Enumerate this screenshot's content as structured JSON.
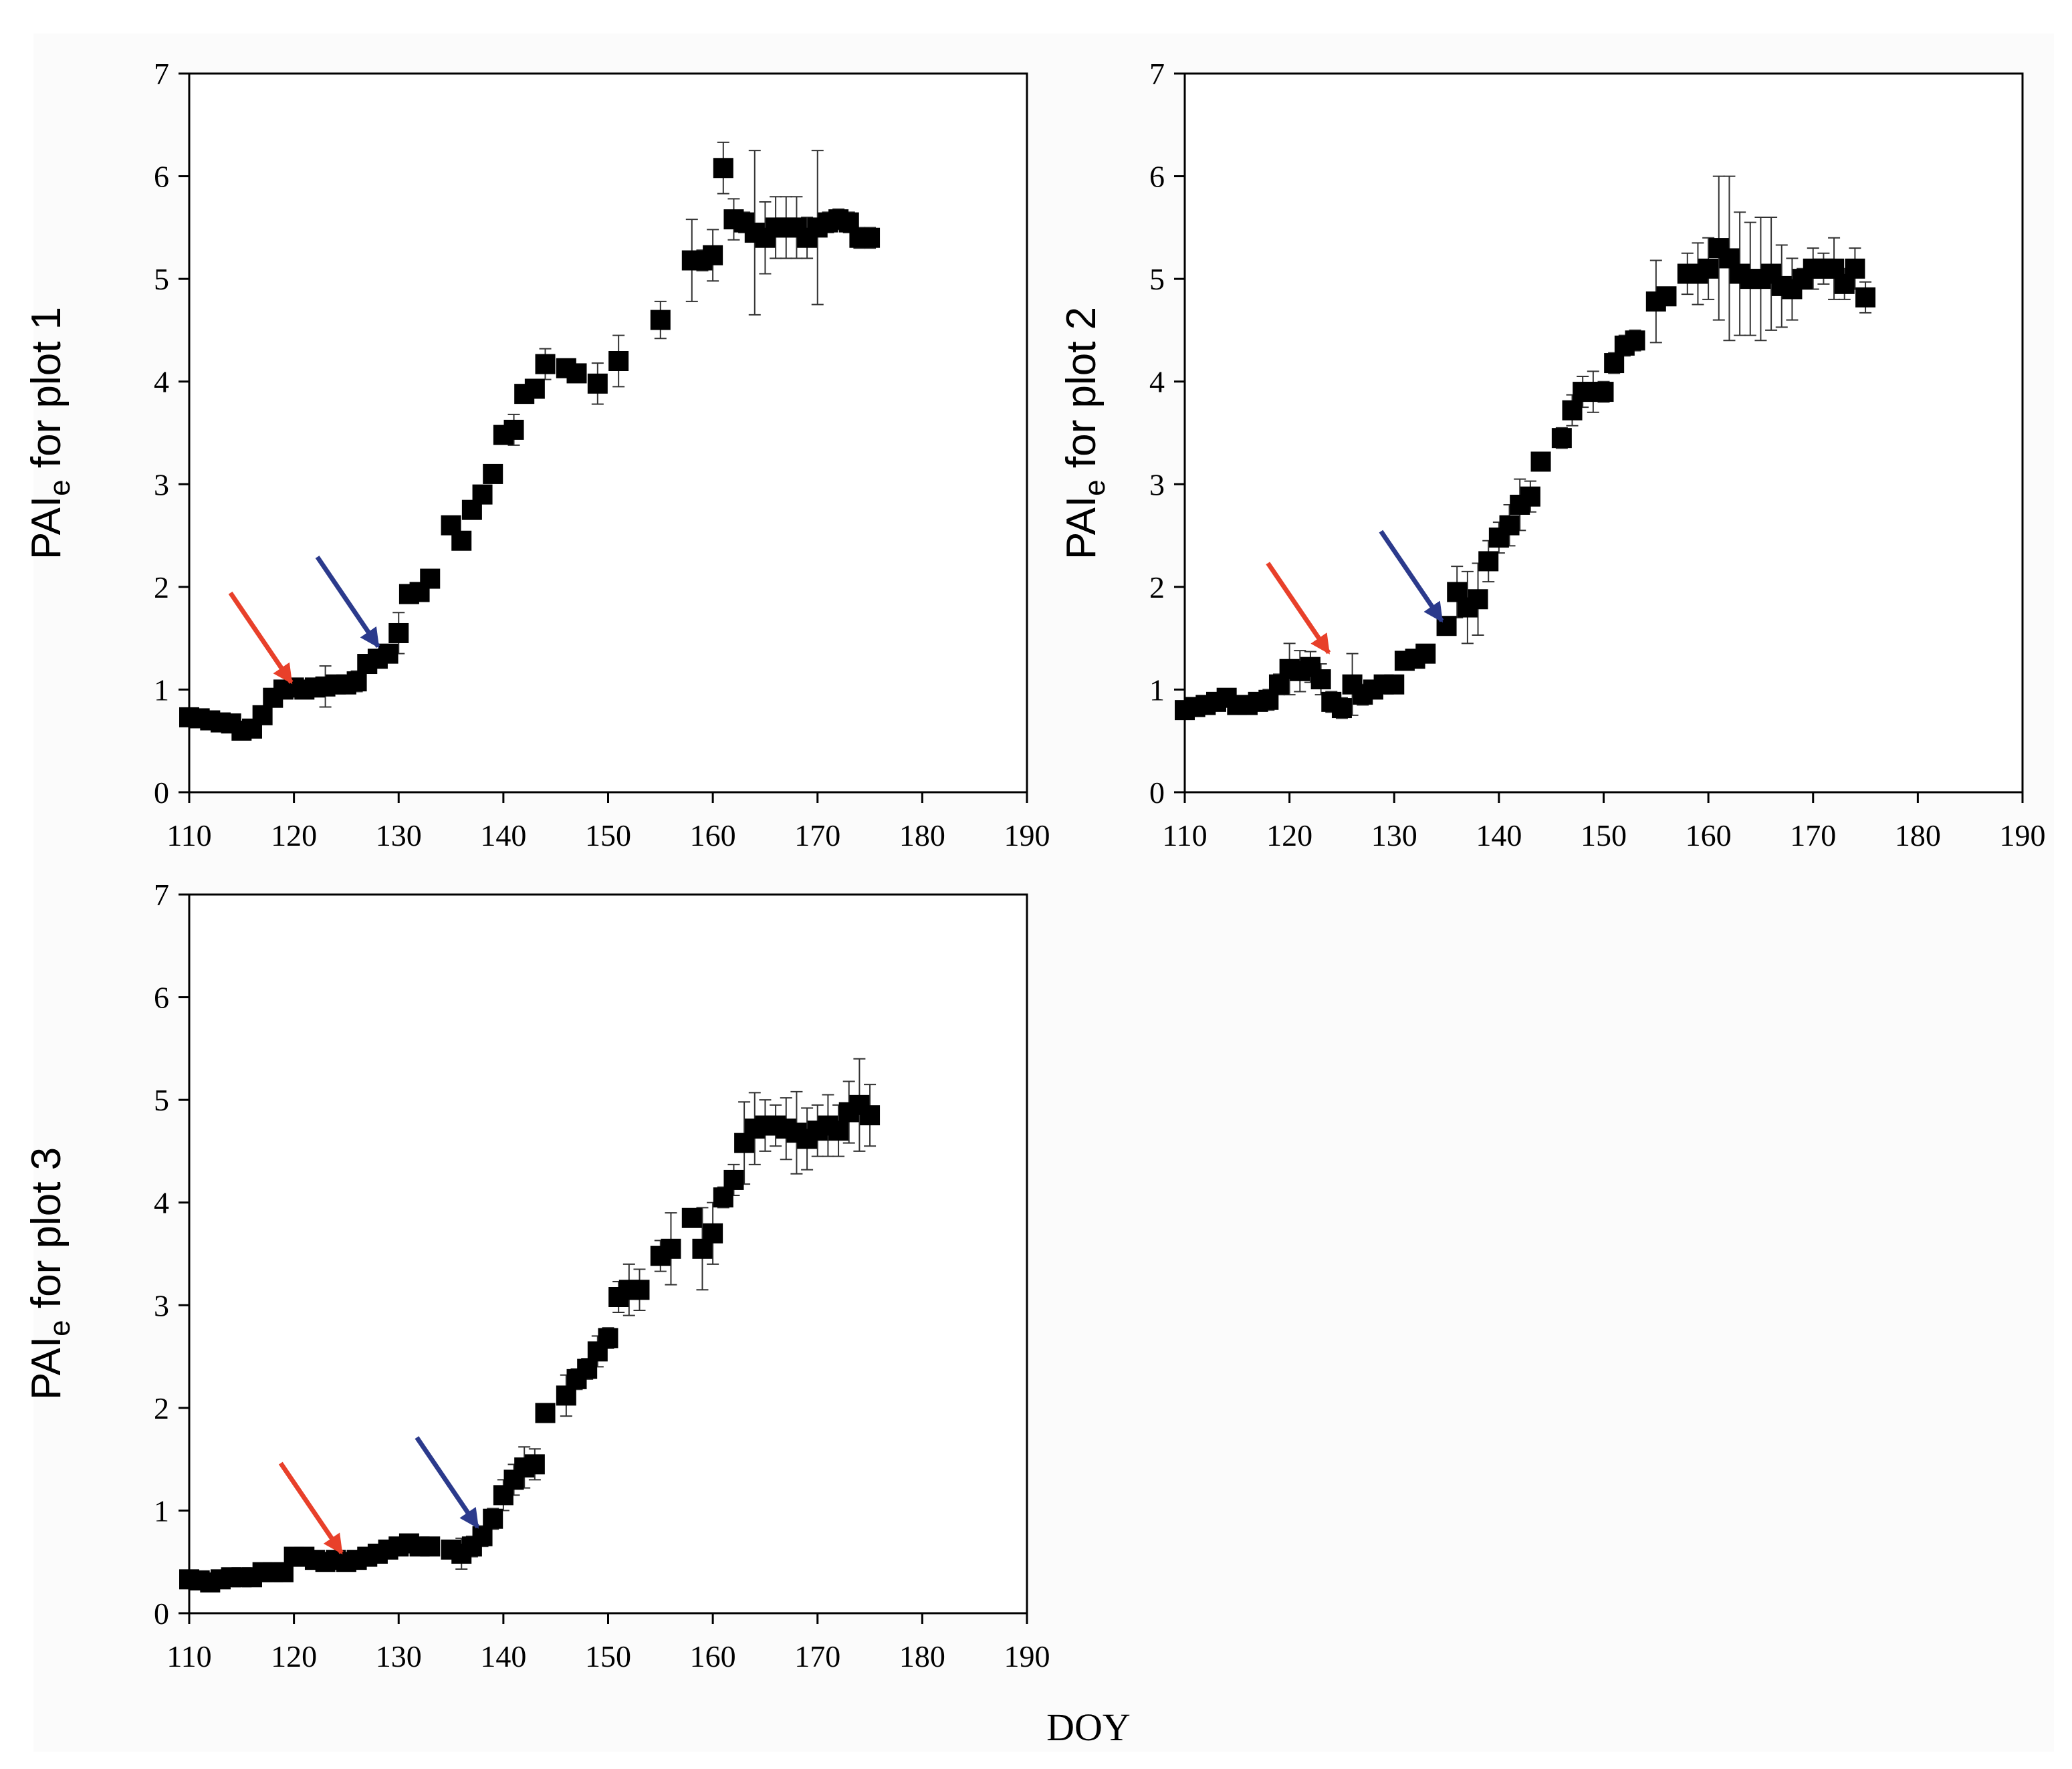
{
  "figure": {
    "xlabel": "DOY"
  },
  "colors": {
    "red_arrow": "#e8402a",
    "blue_arrow": "#2b3a8c",
    "marker": "#000000"
  },
  "chart_data": [
    {
      "type": "scatter",
      "name": "plot1",
      "ylabel": {
        "main": "PAI",
        "sub": "e",
        "rest": " for plot 1"
      },
      "xlim": [
        110,
        190
      ],
      "ylim": [
        0,
        7
      ],
      "xticks": [
        "110",
        "120",
        "130",
        "140",
        "150",
        "160",
        "170",
        "180",
        "190"
      ],
      "yticks": [
        "0",
        "1",
        "2",
        "3",
        "4",
        "5",
        "6",
        "7"
      ],
      "x": [
        110,
        111,
        112,
        113,
        114,
        115,
        116,
        117,
        118,
        119,
        120,
        121,
        122,
        123,
        124,
        125,
        126,
        127,
        128,
        129,
        130,
        131,
        132,
        133,
        135,
        136,
        137,
        138,
        139,
        140,
        141,
        142,
        143,
        144,
        146,
        147,
        149,
        151,
        155,
        158,
        159,
        160,
        161,
        162,
        163,
        164,
        165,
        166,
        167,
        168,
        169,
        170,
        171,
        172,
        173,
        174,
        175
      ],
      "y": [
        0.73,
        0.72,
        0.7,
        0.68,
        0.67,
        0.6,
        0.62,
        0.75,
        0.92,
        1.0,
        1.02,
        1.0,
        1.02,
        1.03,
        1.05,
        1.05,
        1.08,
        1.25,
        1.3,
        1.35,
        1.55,
        1.93,
        1.95,
        2.08,
        2.6,
        2.45,
        2.75,
        2.9,
        3.1,
        3.48,
        3.53,
        3.88,
        3.93,
        4.17,
        4.13,
        4.08,
        3.98,
        4.2,
        4.6,
        5.18,
        5.18,
        5.23,
        6.08,
        5.58,
        5.55,
        5.45,
        5.4,
        5.5,
        5.5,
        5.5,
        5.4,
        5.5,
        5.55,
        5.58,
        5.55,
        5.4,
        5.4
      ],
      "err": [
        0.03,
        0.03,
        0.03,
        0.03,
        0.03,
        0.03,
        0.05,
        0.05,
        0.08,
        0.05,
        0.05,
        0.05,
        0.08,
        0.2,
        0.05,
        0.05,
        0.1,
        0.05,
        0.05,
        0.05,
        0.2,
        0.05,
        0.05,
        0.05,
        0.05,
        0.08,
        0.05,
        0.05,
        0.05,
        0.05,
        0.15,
        0.05,
        0.05,
        0.15,
        0.05,
        0.08,
        0.2,
        0.25,
        0.18,
        0.4,
        0.1,
        0.25,
        0.25,
        0.2,
        0.1,
        0.8,
        0.35,
        0.3,
        0.3,
        0.3,
        0.2,
        0.75,
        0.1,
        0.1,
        0.1,
        0.1,
        0.1
      ],
      "arrows": [
        {
          "color": "red",
          "x": 120.0,
          "y": 1.03
        },
        {
          "color": "blue",
          "x": 128.3,
          "y": 1.38
        }
      ]
    },
    {
      "type": "scatter",
      "name": "plot2",
      "ylabel": {
        "main": "PAI",
        "sub": "e",
        "rest": " for plot 2"
      },
      "xlim": [
        110,
        190
      ],
      "ylim": [
        0,
        7
      ],
      "xticks": [
        "110",
        "120",
        "130",
        "140",
        "150",
        "160",
        "170",
        "180",
        "190"
      ],
      "yticks": [
        "0",
        "1",
        "2",
        "3",
        "4",
        "5",
        "6",
        "7"
      ],
      "x": [
        110,
        111,
        112,
        113,
        114,
        115,
        116,
        117,
        118,
        119,
        120,
        121,
        122,
        123,
        124,
        125,
        126,
        127,
        128,
        129,
        130,
        131,
        132,
        133,
        135,
        136,
        137,
        138,
        139,
        140,
        141,
        142,
        143,
        144,
        146,
        147,
        148,
        149,
        150,
        151,
        152,
        153,
        155,
        156,
        158,
        159,
        160,
        161,
        162,
        163,
        164,
        165,
        166,
        167,
        168,
        169,
        170,
        171,
        172,
        173,
        174,
        175
      ],
      "y": [
        0.8,
        0.83,
        0.85,
        0.88,
        0.92,
        0.85,
        0.85,
        0.88,
        0.9,
        1.05,
        1.2,
        1.18,
        1.22,
        1.1,
        0.88,
        0.82,
        1.05,
        0.95,
        1.0,
        1.05,
        1.05,
        1.28,
        1.3,
        1.35,
        1.62,
        1.95,
        1.8,
        1.88,
        2.25,
        2.48,
        2.6,
        2.8,
        2.88,
        3.22,
        3.45,
        3.72,
        3.9,
        3.9,
        3.9,
        4.18,
        4.35,
        4.4,
        4.78,
        4.83,
        5.05,
        5.05,
        5.1,
        5.3,
        5.2,
        5.05,
        5.0,
        5.0,
        5.05,
        4.93,
        4.9,
        5.0,
        5.1,
        5.1,
        5.1,
        4.95,
        5.1,
        4.82
      ],
      "err": [
        0.05,
        0.05,
        0.05,
        0.05,
        0.05,
        0.05,
        0.05,
        0.05,
        0.1,
        0.1,
        0.25,
        0.2,
        0.15,
        0.15,
        0.1,
        0.1,
        0.3,
        0.1,
        0.05,
        0.05,
        0.05,
        0.08,
        0.05,
        0.05,
        0.05,
        0.25,
        0.35,
        0.35,
        0.2,
        0.15,
        0.2,
        0.25,
        0.15,
        0.05,
        0.1,
        0.15,
        0.15,
        0.2,
        0.1,
        0.1,
        0.1,
        0.1,
        0.4,
        0.05,
        0.2,
        0.3,
        0.3,
        0.7,
        0.8,
        0.6,
        0.55,
        0.6,
        0.55,
        0.4,
        0.3,
        0.1,
        0.2,
        0.15,
        0.3,
        0.15,
        0.2,
        0.15
      ],
      "arrows": [
        {
          "color": "red",
          "x": 124.0,
          "y": 1.32
        },
        {
          "color": "blue",
          "x": 134.8,
          "y": 1.63
        }
      ]
    },
    {
      "type": "scatter",
      "name": "plot3",
      "ylabel": {
        "main": "PAI",
        "sub": "e",
        "rest": " for plot 3"
      },
      "xlim": [
        110,
        190
      ],
      "ylim": [
        0,
        7
      ],
      "xticks": [
        "110",
        "120",
        "130",
        "140",
        "150",
        "160",
        "170",
        "180",
        "190"
      ],
      "yticks": [
        "0",
        "1",
        "2",
        "3",
        "4",
        "5",
        "6",
        "7"
      ],
      "x": [
        110,
        111,
        112,
        113,
        114,
        115,
        116,
        117,
        118,
        119,
        120,
        121,
        122,
        123,
        124,
        125,
        126,
        127,
        128,
        129,
        130,
        131,
        132,
        133,
        135,
        136,
        137,
        138,
        139,
        140,
        141,
        142,
        143,
        144,
        146,
        147,
        148,
        149,
        150,
        151,
        152,
        153,
        155,
        156,
        158,
        159,
        160,
        161,
        162,
        163,
        164,
        165,
        166,
        167,
        168,
        169,
        170,
        171,
        172,
        173,
        174,
        175
      ],
      "y": [
        0.33,
        0.32,
        0.3,
        0.33,
        0.35,
        0.35,
        0.35,
        0.4,
        0.4,
        0.4,
        0.55,
        0.55,
        0.52,
        0.5,
        0.52,
        0.5,
        0.52,
        0.55,
        0.58,
        0.62,
        0.65,
        0.68,
        0.65,
        0.65,
        0.62,
        0.58,
        0.65,
        0.75,
        0.92,
        1.15,
        1.3,
        1.42,
        1.45,
        1.95,
        2.12,
        2.28,
        2.38,
        2.55,
        2.68,
        3.08,
        3.15,
        3.15,
        3.48,
        3.55,
        3.85,
        3.55,
        3.7,
        4.05,
        4.22,
        4.58,
        4.72,
        4.75,
        4.75,
        4.72,
        4.68,
        4.62,
        4.7,
        4.75,
        4.7,
        4.88,
        4.95,
        4.85
      ],
      "err": [
        0.05,
        0.05,
        0.05,
        0.05,
        0.05,
        0.05,
        0.05,
        0.05,
        0.05,
        0.05,
        0.05,
        0.05,
        0.05,
        0.05,
        0.05,
        0.05,
        0.05,
        0.05,
        0.05,
        0.05,
        0.05,
        0.05,
        0.05,
        0.05,
        0.08,
        0.15,
        0.1,
        0.1,
        0.1,
        0.15,
        0.15,
        0.2,
        0.15,
        0.05,
        0.2,
        0.1,
        0.1,
        0.15,
        0.1,
        0.15,
        0.25,
        0.2,
        0.15,
        0.35,
        0.05,
        0.4,
        0.3,
        0.1,
        0.15,
        0.4,
        0.35,
        0.25,
        0.2,
        0.3,
        0.4,
        0.3,
        0.25,
        0.3,
        0.25,
        0.3,
        0.45,
        0.3
      ],
      "arrows": [
        {
          "color": "red",
          "x": 124.8,
          "y": 0.55
        },
        {
          "color": "blue",
          "x": 137.8,
          "y": 0.8
        }
      ]
    }
  ]
}
